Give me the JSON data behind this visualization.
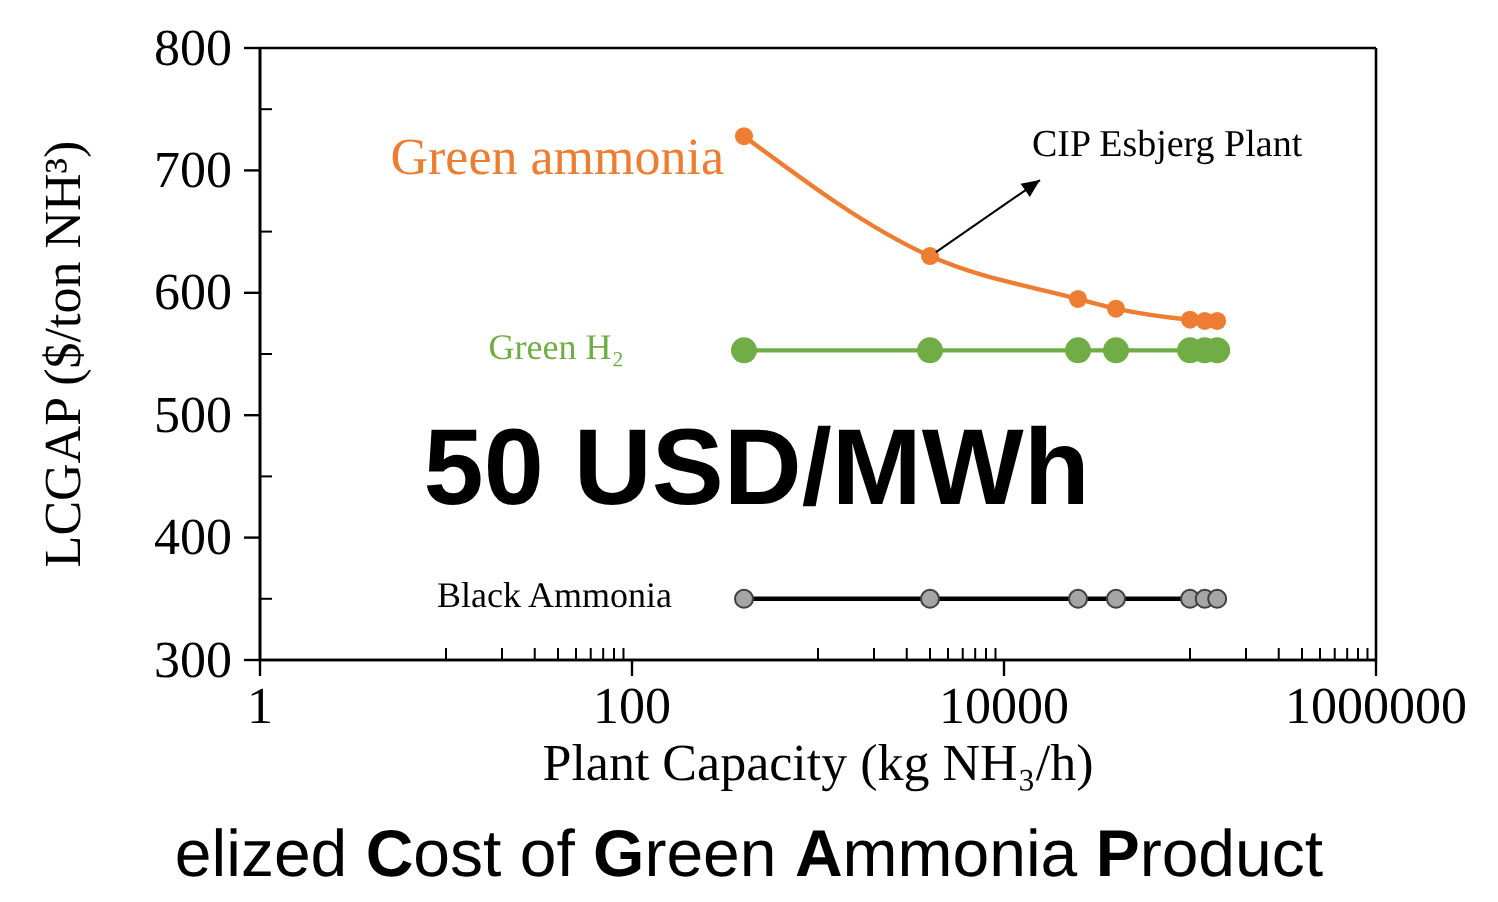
{
  "chart_data": {
    "type": "line",
    "xlabel": "Plant Capacity (kg NH₃/h)",
    "ylabel": "LCGAP ($/ton NH³)",
    "x": [
      400,
      4000,
      25000,
      40000,
      100000,
      120000,
      140000
    ],
    "series": [
      {
        "name": "Green ammonia",
        "color": "#ed7d31",
        "values": [
          728,
          630,
          595,
          587,
          578,
          577,
          577
        ]
      },
      {
        "name": "Green H₂",
        "color": "#70ad47",
        "values": [
          553,
          553,
          553,
          553,
          553,
          553,
          553
        ]
      },
      {
        "name": "Black Ammonia",
        "color": "#000000",
        "colors": [
          "#a5a5a5",
          "#a5a5a5",
          "#a5a5a5",
          "#a5a5a5",
          "#a5a5a5",
          "#a5a5a5",
          "#a5a5a5"
        ],
        "values": [
          350,
          350,
          350,
          350,
          350,
          350,
          350
        ]
      }
    ],
    "log": "x",
    "marker": "circle",
    "line_style": "solid",
    "xlim": [
      1,
      1000000
    ],
    "xticks": [
      1,
      {
        "value": 10,
        "label": null
      },
      {
        "value": 20,
        "label": null
      },
      {
        "value": 30,
        "label": null
      },
      {
        "value": 40,
        "label": null
      },
      {
        "value": 50,
        "label": null
      },
      {
        "value": 60,
        "label": null
      },
      {
        "value": 70,
        "label": null
      },
      {
        "value": 80,
        "label": null
      },
      {
        "value": 90,
        "label": null
      },
      100,
      {
        "value": 1000,
        "label": null
      },
      {
        "value": 2000,
        "label": null
      },
      {
        "value": 3000,
        "label": null
      },
      {
        "value": 4000,
        "label": null
      },
      {
        "value": 5000,
        "label": null
      },
      {
        "value": 6000,
        "label": null
      },
      {
        "value": 7000,
        "label": null
      },
      {
        "value": 8000,
        "label": null
      },
      {
        "value": 9000,
        "label": null
      },
      10000,
      {
        "value": 100000,
        "label": null
      },
      {
        "value": 200000,
        "label": null
      },
      {
        "value": 300000,
        "label": null
      },
      {
        "value": 400000,
        "label": null
      },
      {
        "value": 500000,
        "label": null
      },
      {
        "value": 600000,
        "label": null
      },
      {
        "value": 700000,
        "label": null
      },
      {
        "value": 800000,
        "label": null
      },
      {
        "value": 900000,
        "label": null
      },
      1000000
    ],
    "ylim": [
      300,
      800
    ],
    "yticks": [
      300,
      {
        "value": 350,
        "label": null
      },
      400,
      {
        "value": 450,
        "label": null
      },
      500,
      {
        "value": 550,
        "label": null
      },
      600,
      {
        "value": 650,
        "label": null
      },
      700,
      {
        "value": 750,
        "label": null
      },
      800
    ],
    "annotations": [
      {
        "text": "CIP Esbjerg Plant",
        "x": 4000,
        "y": 630
      },
      "50 USD/MWh",
      "elized Cost of Green Ammonia Product"
    ]
  }
}
